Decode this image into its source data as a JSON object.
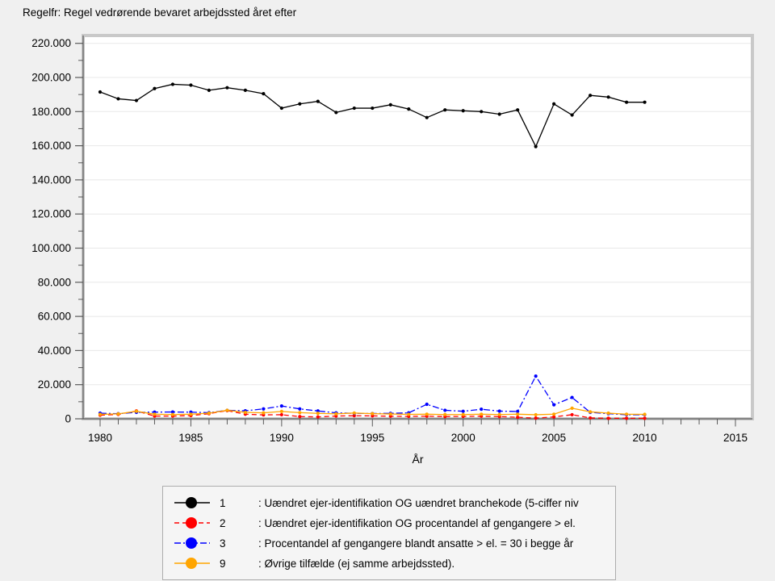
{
  "figure": {
    "background": "#f0f0f0",
    "plot_background": "#ffffff",
    "frame_color": "#c9c9c9",
    "gridline_color": "#e8e8e8",
    "axis_color": "#5a5a5a"
  },
  "chart_data": {
    "type": "line",
    "title": "Regelfr: Regel vedrørende bevaret arbejdssted året efter",
    "xlabel": "År",
    "ylabel": "",
    "xlim": [
      1979,
      2016
    ],
    "ylim": [
      0,
      220000
    ],
    "grid": "horizontal major gridlines only, light gray",
    "legend_position": "bottom-center",
    "x_axis": {
      "tick_labels": [
        "1980",
        "1985",
        "1990",
        "1995",
        "2000",
        "2005",
        "2010",
        "2015"
      ],
      "minor_tick_interval_years": 1
    },
    "y_axis": {
      "tick_labels": [
        "0",
        "20.000",
        "40.000",
        "60.000",
        "80.000",
        "100.000",
        "120.000",
        "140.000",
        "160.000",
        "180.000",
        "200.000",
        "220.000"
      ],
      "major_tick_interval": 20000,
      "minor_tick_interval": 10000
    },
    "x": [
      1980,
      1981,
      1982,
      1983,
      1984,
      1985,
      1986,
      1987,
      1988,
      1989,
      1990,
      1991,
      1992,
      1993,
      1994,
      1995,
      1996,
      1997,
      1998,
      1999,
      2000,
      2001,
      2002,
      2003,
      2004,
      2005,
      2006,
      2007,
      2008,
      2009,
      2010
    ],
    "series": [
      {
        "id": "1",
        "label": ": Uændret ejer-identifikation OG uændret branchekode (5-ciffer niv",
        "color": "#000000",
        "line_style": "solid",
        "marker": "filled-circle",
        "values": [
          191500,
          187500,
          186500,
          193500,
          196000,
          195500,
          192500,
          194000,
          192500,
          190500,
          182000,
          184500,
          186000,
          179500,
          182000,
          182000,
          184000,
          181500,
          176500,
          181000,
          180500,
          180000,
          178500,
          181000,
          159500,
          184500,
          178000,
          189500,
          188500,
          185500,
          185500
        ]
      },
      {
        "id": "2",
        "label": ": Uændret ejer-identifikation OG procentandel af gengangere > el.",
        "color": "#ff0000",
        "line_style": "dashed",
        "marker": "filled-circle",
        "values": [
          2100,
          2600,
          4600,
          1600,
          1600,
          1900,
          3000,
          4800,
          2700,
          2300,
          2400,
          1300,
          1100,
          1600,
          1800,
          1700,
          1500,
          1400,
          1500,
          1300,
          1400,
          1500,
          1300,
          900,
          400,
          1100,
          2400,
          500,
          300,
          300,
          300
        ]
      },
      {
        "id": "3",
        "label": ": Procentandel af gengangere blandt ansatte > el. = 30 i begge år",
        "color": "#0000ff",
        "line_style": "dash-dot",
        "marker": "filled-circle",
        "values": [
          3300,
          3000,
          3800,
          3900,
          4000,
          3900,
          3600,
          5000,
          4700,
          5800,
          7500,
          5800,
          4600,
          3500,
          3200,
          3100,
          3200,
          3500,
          8500,
          5000,
          4400,
          5600,
          4500,
          4300,
          25000,
          8200,
          12500,
          3800,
          3000,
          2400,
          2400
        ]
      },
      {
        "id": "9",
        "label": ": Øvrige tilfælde (ej samme arbejdssted).",
        "color": "#ffa500",
        "line_style": "solid",
        "marker": "filled-circle",
        "values": [
          2600,
          2900,
          4400,
          2700,
          2500,
          2700,
          3300,
          5000,
          3800,
          3500,
          4300,
          3600,
          3200,
          2900,
          3400,
          3000,
          2800,
          2600,
          2700,
          2500,
          2500,
          2700,
          2500,
          2700,
          2400,
          2700,
          6200,
          4100,
          3300,
          2700,
          2600
        ]
      }
    ]
  }
}
